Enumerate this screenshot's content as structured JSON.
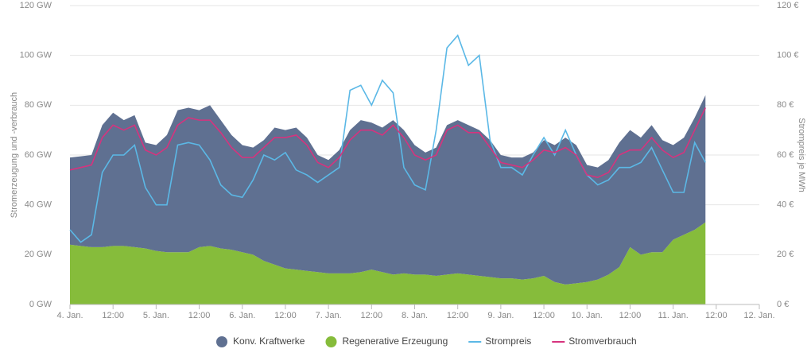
{
  "chart_data": {
    "type": "stacked-area-line",
    "ylabel": "Stromerzeugung und -verbrauch",
    "y2label": "Strompreis je MWh",
    "x": [
      0,
      3,
      6,
      9,
      12,
      15,
      18,
      21,
      24,
      27,
      30,
      33,
      36,
      39,
      42,
      45,
      48,
      51,
      54,
      57,
      60,
      63,
      66,
      69,
      72,
      75,
      78,
      81,
      84,
      87,
      90,
      93,
      96,
      99,
      102,
      105,
      108,
      111,
      114,
      117,
      120,
      123,
      126,
      129,
      132,
      135,
      138,
      141,
      144,
      147,
      150,
      153,
      156,
      159,
      162,
      165,
      168,
      171,
      174,
      177
    ],
    "xlim": [
      0,
      192
    ],
    "xticks": [
      {
        "value": 0,
        "label": "4. Jan."
      },
      {
        "value": 12,
        "label": "12:00"
      },
      {
        "value": 24,
        "label": "5. Jan."
      },
      {
        "value": 36,
        "label": "12:00"
      },
      {
        "value": 48,
        "label": "6. Jan."
      },
      {
        "value": 60,
        "label": "12:00"
      },
      {
        "value": 72,
        "label": "7. Jan."
      },
      {
        "value": 84,
        "label": "12:00"
      },
      {
        "value": 96,
        "label": "8. Jan."
      },
      {
        "value": 108,
        "label": "12:00"
      },
      {
        "value": 120,
        "label": "9. Jan."
      },
      {
        "value": 132,
        "label": "12:00"
      },
      {
        "value": 144,
        "label": "10. Jan."
      },
      {
        "value": 156,
        "label": "12:00"
      },
      {
        "value": 168,
        "label": "11. Jan."
      },
      {
        "value": 180,
        "label": "12:00"
      },
      {
        "value": 192,
        "label": "12. Jan."
      }
    ],
    "ylim": [
      0,
      120
    ],
    "yticks": [
      {
        "value": 0,
        "label": "0 GW"
      },
      {
        "value": 20,
        "label": "20 GW"
      },
      {
        "value": 40,
        "label": "40 GW"
      },
      {
        "value": 60,
        "label": "60 GW"
      },
      {
        "value": 80,
        "label": "80 GW"
      },
      {
        "value": 100,
        "label": "100 GW"
      },
      {
        "value": 120,
        "label": "120 GW"
      }
    ],
    "y2lim": [
      0,
      120
    ],
    "y2ticks": [
      {
        "value": 0,
        "label": "0 €"
      },
      {
        "value": 20,
        "label": "20 €"
      },
      {
        "value": 40,
        "label": "40 €"
      },
      {
        "value": 60,
        "label": "60 €"
      },
      {
        "value": 80,
        "label": "80 €"
      },
      {
        "value": 100,
        "label": "100 €"
      },
      {
        "value": 120,
        "label": "120 €"
      }
    ],
    "grid": true,
    "legend": "bottom",
    "series": [
      {
        "name": "Regenerative Erzeugung",
        "color": "#86bc3b",
        "kind": "area",
        "values": [
          24,
          23.5,
          23,
          23,
          23.5,
          23.5,
          23,
          22.5,
          21.5,
          21,
          21,
          21,
          23,
          23.5,
          22.5,
          22,
          21,
          20,
          17.5,
          16,
          14.5,
          14,
          13.5,
          13,
          12.5,
          12.5,
          12.5,
          13,
          14,
          13,
          12,
          12.5,
          12,
          12,
          11.5,
          12,
          12.5,
          12,
          11.5,
          11,
          10.5,
          10.5,
          10,
          10.5,
          11.5,
          9,
          8,
          8.5,
          9,
          10,
          12,
          15,
          23,
          20,
          21,
          21,
          26,
          28,
          30,
          33
        ]
      },
      {
        "name": "Konv. Kraftwerke",
        "color": "#5f7091",
        "kind": "area",
        "values": [
          35,
          36,
          37,
          49,
          53.5,
          50.5,
          53,
          42.5,
          42.5,
          47,
          57,
          58,
          55,
          56.5,
          51.5,
          46,
          43,
          43,
          48.5,
          55,
          55.5,
          57,
          53.5,
          47,
          45.5,
          49.5,
          57.5,
          61,
          59,
          58,
          62,
          57.5,
          52,
          49,
          51.5,
          60,
          61.5,
          60,
          58.5,
          55,
          49.5,
          48.5,
          49,
          50.5,
          54.5,
          55,
          59,
          55.5,
          47,
          45,
          46,
          50,
          47,
          47,
          51,
          45,
          38,
          39,
          45,
          51
        ]
      },
      {
        "name": "Strompreis",
        "color": "#5bb8e6",
        "kind": "line",
        "axis": "y2",
        "values": [
          30,
          25,
          28,
          53,
          60,
          60,
          64,
          47,
          40,
          40,
          64,
          65,
          64,
          58,
          48,
          44,
          43,
          50,
          60,
          58,
          61,
          54,
          52,
          49,
          52,
          55,
          86,
          88,
          80,
          90,
          85,
          55,
          48,
          46,
          70,
          103,
          108,
          96,
          100,
          66,
          55,
          55,
          52,
          60,
          67,
          60,
          70,
          60,
          52,
          48,
          50,
          55,
          55,
          57,
          63,
          54,
          45,
          45,
          65,
          57
        ]
      },
      {
        "name": "Stromverbrauch",
        "color": "#d6337e",
        "kind": "line",
        "values": [
          54,
          55,
          56,
          67,
          72,
          70,
          72,
          62,
          60,
          63,
          72,
          75,
          74,
          74,
          69,
          63,
          59,
          59,
          63,
          67,
          67,
          68,
          64,
          57,
          55,
          59,
          66,
          70,
          70,
          68,
          72,
          67,
          60,
          58,
          60,
          70,
          72,
          69,
          69,
          63,
          57,
          56,
          55,
          58,
          62,
          61,
          63,
          60,
          52,
          51,
          53,
          60,
          62,
          62,
          67,
          62,
          59,
          61,
          70,
          79
        ]
      }
    ]
  }
}
